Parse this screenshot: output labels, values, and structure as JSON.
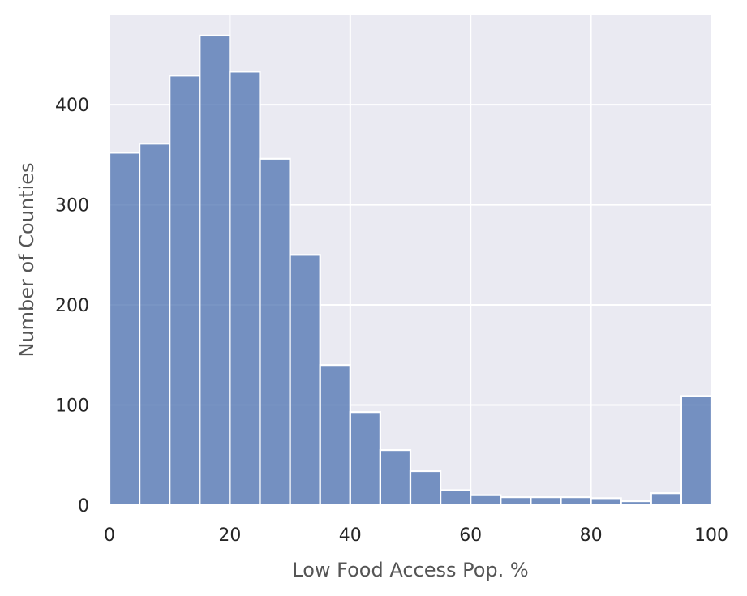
{
  "chart_data": {
    "type": "bar",
    "title": "",
    "xlabel": "Low Food Access Pop. %",
    "ylabel": "Number of Counties",
    "xlim": [
      0,
      100
    ],
    "ylim": [
      0,
      490
    ],
    "bin_edges": [
      0,
      5,
      10,
      15,
      20,
      25,
      30,
      35,
      40,
      45,
      50,
      55,
      60,
      65,
      70,
      75,
      80,
      85,
      90,
      95,
      100
    ],
    "values": [
      352,
      361,
      429,
      469,
      433,
      346,
      250,
      140,
      93,
      55,
      34,
      15,
      10,
      8,
      8,
      8,
      7,
      4,
      12,
      109
    ],
    "xticks": [
      0,
      20,
      40,
      60,
      80,
      100
    ],
    "xtick_labels": [
      "0",
      "20",
      "40",
      "60",
      "80",
      "100"
    ],
    "yticks": [
      0,
      100,
      200,
      300,
      400
    ],
    "ytick_labels": [
      "0",
      "100",
      "200",
      "300",
      "400"
    ],
    "grid": true,
    "legend": "none",
    "colors": {
      "bar_fill": "#4c72b0",
      "bar_edge": "#ffffff",
      "plot_background": "#eaeaf2",
      "grid": "#ffffff"
    }
  }
}
